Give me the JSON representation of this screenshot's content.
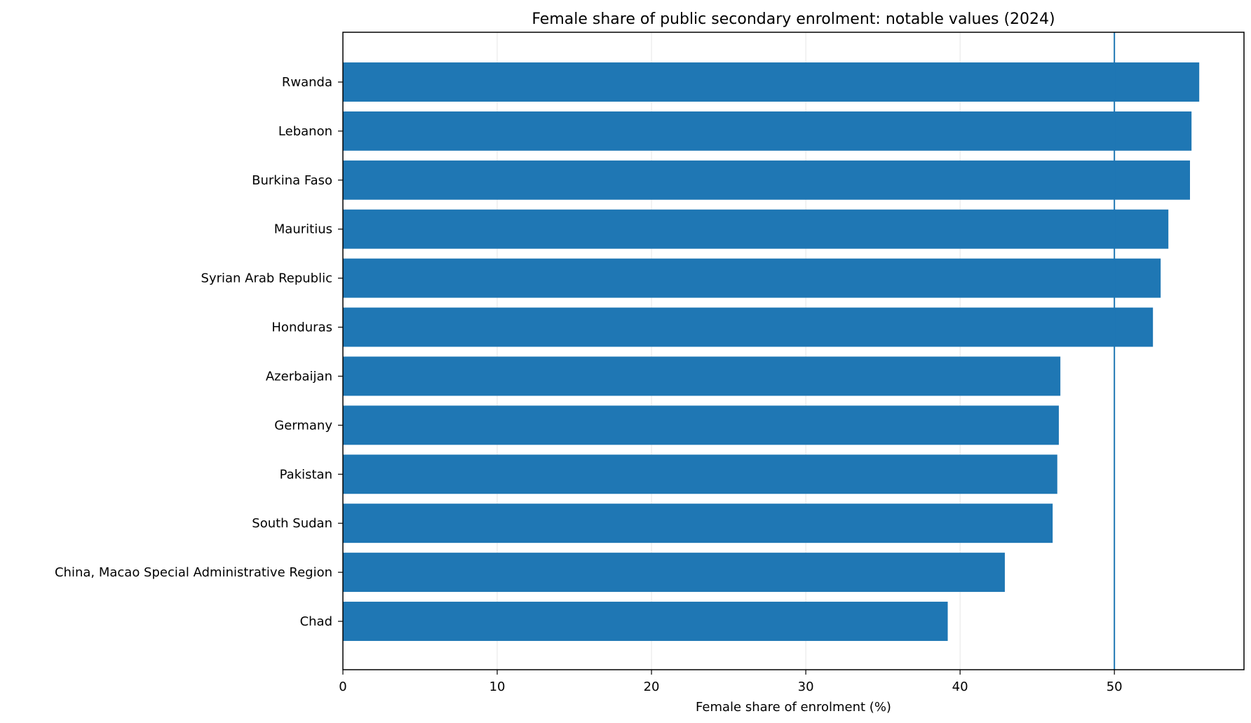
{
  "chart_data": {
    "type": "bar",
    "orientation": "horizontal",
    "title": "Female share of public secondary enrolment: notable values (2024)",
    "xlabel": "Female share of enrolment (%)",
    "ylabel": "",
    "categories": [
      "Rwanda",
      "Lebanon",
      "Burkina Faso",
      "Mauritius",
      "Syrian Arab Republic",
      "Honduras",
      "Azerbaijan",
      "Germany",
      "Pakistan",
      "South Sudan",
      "China, Macao Special Administrative Region",
      "Chad"
    ],
    "values": [
      55.5,
      55.0,
      54.9,
      53.5,
      53.0,
      52.5,
      46.5,
      46.4,
      46.3,
      46.0,
      42.9,
      39.2
    ],
    "xlim": [
      0,
      58.4
    ],
    "xticks": [
      0,
      10,
      20,
      30,
      40,
      50
    ],
    "reference_line": 50,
    "grid": "vertical",
    "legend": "none",
    "colors": {
      "bar": "#1f77b4",
      "reference_line": "#1f77b4",
      "grid": "#e6e6e6",
      "axis": "#000000",
      "text": "#000000"
    }
  }
}
